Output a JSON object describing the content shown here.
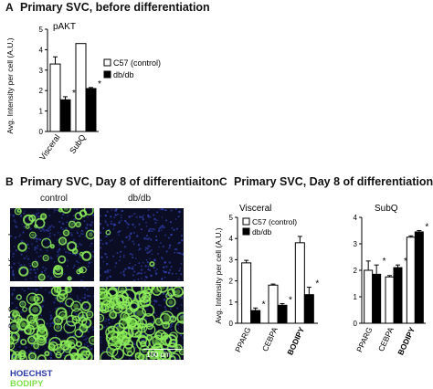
{
  "panels": {
    "a": {
      "letter": "A",
      "title": "Primary SVC, before differentiation"
    },
    "b": {
      "letter": "B",
      "title": "Primary SVC, Day 8 of differentiaiton",
      "col_labels": [
        "control",
        "db/db"
      ],
      "row_labels": [
        "Visceral",
        "SubQ"
      ],
      "scale_bar": "100 um",
      "stain_legend": [
        "HOECHST",
        "BODIPY"
      ],
      "colors": {
        "hoechst": "#2b3aa8",
        "bodipy": "#7ee04a"
      }
    },
    "c": {
      "letter": "C",
      "title": "Primary SVC, Day 8 of differentiation"
    }
  },
  "chart_data": [
    {
      "id": "A",
      "type": "bar",
      "title": "pAKT",
      "ylabel": "Avg. Intensity per cell (A.U.)",
      "ylim": [
        0,
        5
      ],
      "yticks": [
        0,
        1,
        2,
        3,
        4,
        5
      ],
      "categories": [
        "Visceral",
        "SubQ"
      ],
      "series": [
        {
          "name": "C57 (control)",
          "color": "#ffffff",
          "values": [
            3.3,
            4.3
          ],
          "errors": [
            0.35,
            0
          ]
        },
        {
          "name": "db/db",
          "color": "#000000",
          "values": [
            1.55,
            2.1
          ],
          "errors": [
            0.15,
            0.05
          ]
        }
      ],
      "significance": [
        "*",
        "*"
      ]
    },
    {
      "id": "C-visceral",
      "type": "bar",
      "title": "Visceral",
      "ylabel": "Avg. Intensity per cell (A.U.)",
      "ylim": [
        0,
        5
      ],
      "yticks": [
        0,
        1,
        2,
        3,
        4,
        5
      ],
      "categories": [
        "PPARG",
        "CEBPA",
        "BODIPY"
      ],
      "series": [
        {
          "name": "C57 (control)",
          "color": "#ffffff",
          "values": [
            2.85,
            1.8,
            3.8
          ],
          "errors": [
            0.12,
            0.05,
            0.3
          ]
        },
        {
          "name": "db/db",
          "color": "#000000",
          "values": [
            0.6,
            0.85,
            1.35
          ],
          "errors": [
            0.12,
            0.08,
            0.35
          ]
        }
      ],
      "significance": [
        "*",
        "*",
        "*"
      ]
    },
    {
      "id": "C-subq",
      "type": "bar",
      "title": "SubQ",
      "ylim": [
        0,
        4
      ],
      "yticks": [
        0,
        1,
        2,
        3,
        4
      ],
      "categories": [
        "PPARG",
        "CEBPA",
        "BODIPY"
      ],
      "series": [
        {
          "name": "C57 (control)",
          "color": "#ffffff",
          "values": [
            2.0,
            1.75,
            3.25
          ],
          "errors": [
            0.35,
            0.05,
            0.05
          ]
        },
        {
          "name": "db/db",
          "color": "#000000",
          "values": [
            1.85,
            2.1,
            3.45
          ],
          "errors": [
            0.35,
            0.1,
            0.05
          ]
        }
      ],
      "significance": [
        "*",
        "*",
        "*"
      ]
    }
  ]
}
